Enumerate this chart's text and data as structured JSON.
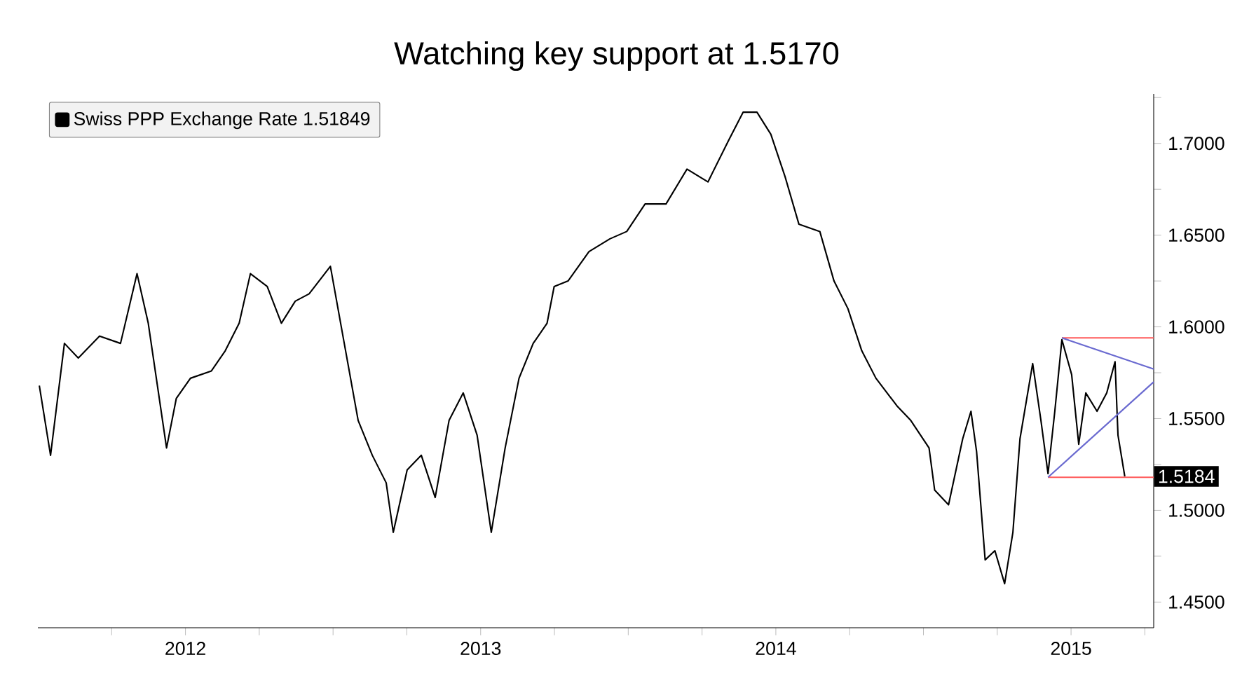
{
  "chart_data": {
    "type": "line",
    "title": "Watching key support at 1.5170",
    "legend": "top left",
    "xlim": [
      2012.0,
      2015.78
    ],
    "ylim": [
      1.436,
      1.727
    ],
    "xticks": [
      {
        "value": 2012.25,
        "label": null
      },
      {
        "value": 2012.5,
        "label": "2012"
      },
      {
        "value": 2012.75,
        "label": null
      },
      {
        "value": 2013,
        "label": null
      },
      {
        "value": 2013.25,
        "label": null
      },
      {
        "value": 2013.5,
        "label": "2013"
      },
      {
        "value": 2013.75,
        "label": null
      },
      {
        "value": 2014,
        "label": null
      },
      {
        "value": 2014.25,
        "label": null
      },
      {
        "value": 2014.5,
        "label": "2014"
      },
      {
        "value": 2014.75,
        "label": null
      },
      {
        "value": 2015,
        "label": null
      },
      {
        "value": 2015.25,
        "label": null
      },
      {
        "value": 2015.5,
        "label": "2015"
      },
      {
        "value": 2015.75,
        "label": null
      }
    ],
    "yticks": [
      {
        "value": 1.45,
        "label": "1.4500"
      },
      {
        "value": 1.475,
        "label": null
      },
      {
        "value": 1.5,
        "label": "1.5000"
      },
      {
        "value": 1.525,
        "label": null
      },
      {
        "value": 1.55,
        "label": "1.5500"
      },
      {
        "value": 1.575,
        "label": null
      },
      {
        "value": 1.6,
        "label": "1.6000"
      },
      {
        "value": 1.625,
        "label": null
      },
      {
        "value": 1.65,
        "label": "1.6500"
      },
      {
        "value": 1.675,
        "label": null
      },
      {
        "value": 1.7,
        "label": "1.7000"
      },
      {
        "value": 1.725,
        "label": null
      }
    ],
    "annotations": [
      {
        "text": "1.5184",
        "x": 2015.78,
        "y": 1.51849
      }
    ],
    "series": [
      {
        "name": "Swiss PPP Exchange Rate 1.51849",
        "color": "#000000",
        "x": [
          2012.005,
          2012.043,
          2012.09,
          2012.137,
          2012.209,
          2012.28,
          2012.336,
          2012.374,
          2012.436,
          2012.469,
          2012.517,
          2012.588,
          2012.635,
          2012.682,
          2012.72,
          2012.777,
          2012.825,
          2012.872,
          2012.919,
          2012.991,
          2013.038,
          2013.085,
          2013.133,
          2013.18,
          2013.204,
          2013.251,
          2013.299,
          2013.346,
          2013.393,
          2013.441,
          2013.488,
          2013.536,
          2013.583,
          2013.63,
          2013.678,
          2013.725,
          2013.749,
          2013.796,
          2013.867,
          2013.938,
          2013.995,
          2014.057,
          2014.128,
          2014.199,
          2014.27,
          2014.341,
          2014.389,
          2014.436,
          2014.483,
          2014.531,
          2014.578,
          2014.649,
          2014.697,
          2014.744,
          2014.791,
          2014.839,
          2014.91,
          2014.957,
          2015.019,
          2015.038,
          2015.085,
          2015.133,
          2015.161,
          2015.18,
          2015.209,
          2015.242,
          2015.275,
          2015.303,
          2015.327,
          2015.37,
          2015.398,
          2015.422,
          2015.445,
          2015.469,
          2015.502,
          2015.526,
          2015.55,
          2015.588,
          2015.621,
          2015.649,
          2015.659,
          2015.682
        ],
        "values": [
          1.568,
          1.53,
          1.591,
          1.583,
          1.595,
          1.591,
          1.629,
          1.602,
          1.534,
          1.561,
          1.572,
          1.576,
          1.587,
          1.602,
          1.629,
          1.622,
          1.602,
          1.614,
          1.618,
          1.633,
          1.591,
          1.549,
          1.53,
          1.515,
          1.488,
          1.522,
          1.53,
          1.507,
          1.549,
          1.564,
          1.541,
          1.488,
          1.534,
          1.572,
          1.591,
          1.602,
          1.622,
          1.625,
          1.641,
          1.648,
          1.652,
          1.667,
          1.667,
          1.686,
          1.679,
          1.702,
          1.717,
          1.717,
          1.705,
          1.682,
          1.656,
          1.652,
          1.625,
          1.61,
          1.587,
          1.572,
          1.557,
          1.549,
          1.534,
          1.511,
          1.503,
          1.539,
          1.554,
          1.532,
          1.473,
          1.478,
          1.46,
          1.488,
          1.539,
          1.58,
          1.549,
          1.52,
          1.554,
          1.593,
          1.574,
          1.536,
          1.564,
          1.554,
          1.564,
          1.581,
          1.541,
          1.5185
        ]
      },
      {
        "color": "#ff5a5a",
        "x": [
          2015.469,
          2015.78
        ],
        "values": [
          1.594,
          1.594
        ]
      },
      {
        "color": "#ff5a5a",
        "x": [
          2015.422,
          2015.78
        ],
        "values": [
          1.518,
          1.518
        ]
      },
      {
        "color": "#6a6ad0",
        "x": [
          2015.469,
          2015.78
        ],
        "values": [
          1.594,
          1.577
        ]
      },
      {
        "color": "#6a6ad0",
        "x": [
          2015.422,
          2015.78
        ],
        "values": [
          1.518,
          1.57
        ]
      }
    ]
  }
}
